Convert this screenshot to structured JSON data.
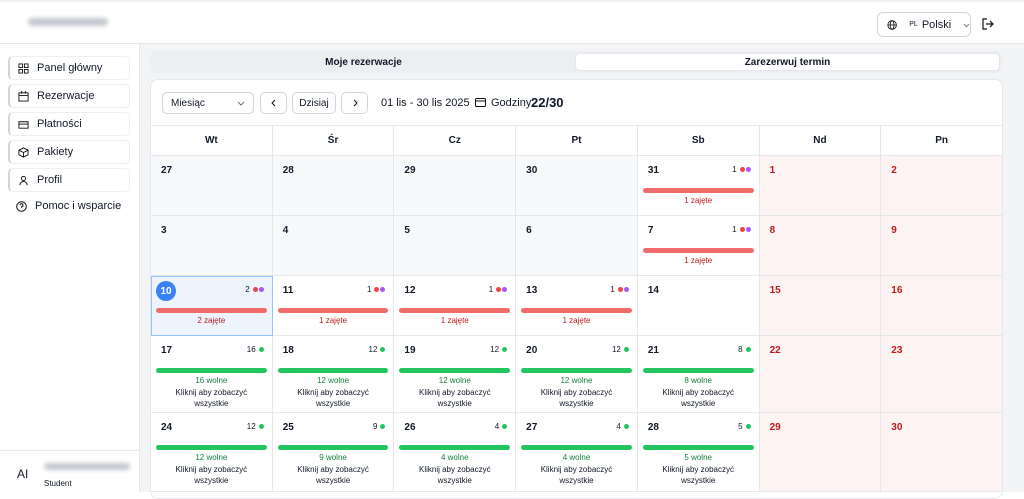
{
  "header": {
    "language_code": "PL",
    "language": "Polski"
  },
  "sidebar": {
    "items": [
      "Panel główny",
      "Rezerwacje",
      "Płatności",
      "Pakiety",
      "Profil"
    ],
    "help": "Pomoc i wsparcie",
    "user": {
      "initials": "AI",
      "role": "Student"
    }
  },
  "tabs": [
    "Moje rezerwacje",
    "Zarezerwuj termin"
  ],
  "toolbar": {
    "view": "Miesiąc",
    "today": "Dzisiaj",
    "range": "01 lis - 30 lis 2025",
    "hours_label": "Godziny:",
    "hours": "22/30"
  },
  "calendar": {
    "weekdays": [
      "Wt",
      "Śr",
      "Cz",
      "Pt",
      "Sb",
      "Nd",
      "Pn"
    ],
    "weeks": [
      [
        {
          "day": 27,
          "past": true
        },
        {
          "day": 28,
          "past": true
        },
        {
          "day": 29,
          "past": true
        },
        {
          "day": 30,
          "past": true
        },
        {
          "day": 31,
          "count": 1,
          "status": "taken",
          "dots": [
            "#ef4444",
            "#a855f7"
          ],
          "label": "1 zajęte"
        },
        {
          "day": 1,
          "weekend": true
        },
        {
          "day": 2,
          "weekend": true
        }
      ],
      [
        {
          "day": 3,
          "past": true
        },
        {
          "day": 4,
          "past": true
        },
        {
          "day": 5,
          "past": true
        },
        {
          "day": 6,
          "past": true
        },
        {
          "day": 7,
          "count": 1,
          "status": "taken",
          "dots": [
            "#ef4444",
            "#a855f7"
          ],
          "label": "1 zajęte"
        },
        {
          "day": 8,
          "weekend": true
        },
        {
          "day": 9,
          "weekend": true
        }
      ],
      [
        {
          "day": 10,
          "today": true,
          "count": 2,
          "status": "taken",
          "dots": [
            "#ef4444",
            "#a855f7"
          ],
          "label": "2 zajęte"
        },
        {
          "day": 11,
          "count": 1,
          "status": "taken",
          "dots": [
            "#ef4444",
            "#a855f7"
          ],
          "label": "1 zajęte"
        },
        {
          "day": 12,
          "count": 1,
          "status": "taken",
          "dots": [
            "#ef4444",
            "#a855f7"
          ],
          "label": "1 zajęte"
        },
        {
          "day": 13,
          "count": 1,
          "status": "taken",
          "dots": [
            "#ef4444",
            "#a855f7"
          ],
          "label": "1 zajęte"
        },
        {
          "day": 14
        },
        {
          "day": 15,
          "weekend": true
        },
        {
          "day": 16,
          "weekend": true
        }
      ],
      [
        {
          "day": 17,
          "count": 16,
          "status": "free",
          "dots": [
            "#22c55e"
          ],
          "label": "16 wolne",
          "hint": "Kliknij aby zobaczyć wszystkie"
        },
        {
          "day": 18,
          "count": 12,
          "status": "free",
          "dots": [
            "#22c55e"
          ],
          "label": "12 wolne",
          "hint": "Kliknij aby zobaczyć wszystkie"
        },
        {
          "day": 19,
          "count": 12,
          "status": "free",
          "dots": [
            "#22c55e"
          ],
          "label": "12 wolne",
          "hint": "Kliknij aby zobaczyć wszystkie"
        },
        {
          "day": 20,
          "count": 12,
          "status": "free",
          "dots": [
            "#22c55e"
          ],
          "label": "12 wolne",
          "hint": "Kliknij aby zobaczyć wszystkie"
        },
        {
          "day": 21,
          "count": 8,
          "status": "free",
          "dots": [
            "#22c55e"
          ],
          "label": "8 wolne",
          "hint": "Kliknij aby zobaczyć wszystkie"
        },
        {
          "day": 22,
          "weekend": true
        },
        {
          "day": 23,
          "weekend": true
        }
      ],
      [
        {
          "day": 24,
          "count": 12,
          "status": "free",
          "dots": [
            "#22c55e"
          ],
          "label": "12 wolne",
          "hint": "Kliknij aby zobaczyć wszystkie"
        },
        {
          "day": 25,
          "count": 9,
          "status": "free",
          "dots": [
            "#22c55e"
          ],
          "label": "9 wolne",
          "hint": "Kliknij aby zobaczyć wszystkie"
        },
        {
          "day": 26,
          "count": 4,
          "status": "free",
          "dots": [
            "#22c55e"
          ],
          "label": "4 wolne",
          "hint": "Kliknij aby zobaczyć wszystkie"
        },
        {
          "day": 27,
          "count": 4,
          "status": "free",
          "dots": [
            "#22c55e"
          ],
          "label": "4 wolne",
          "hint": "Kliknij aby zobaczyć wszystkie"
        },
        {
          "day": 28,
          "count": 5,
          "status": "free",
          "dots": [
            "#22c55e"
          ],
          "label": "5 wolne",
          "hint": "Kliknij aby zobaczyć wszystkie"
        },
        {
          "day": 29,
          "weekend": true
        },
        {
          "day": 30,
          "weekend": true
        }
      ]
    ]
  }
}
